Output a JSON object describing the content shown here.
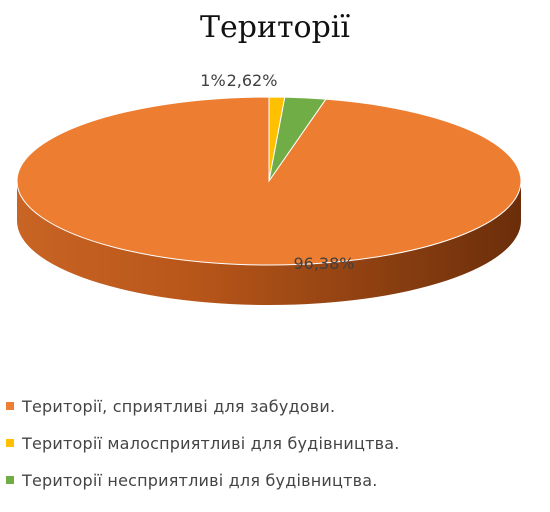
{
  "chart_data": {
    "type": "pie",
    "title": "Території",
    "style": "3d",
    "slices": [
      {
        "name": "Території, сприятливі для забудови.",
        "value": 96.38,
        "label": "96,38%",
        "color": "#ED7D31"
      },
      {
        "name": "Території малосприятливі для будівництва.",
        "value": 1,
        "label": "1%",
        "color": "#FFC000"
      },
      {
        "name": "Території несприятливі для будівництва.",
        "value": 2.62,
        "label": "2,62%",
        "color": "#70AD47"
      }
    ],
    "legend": "bottom"
  }
}
